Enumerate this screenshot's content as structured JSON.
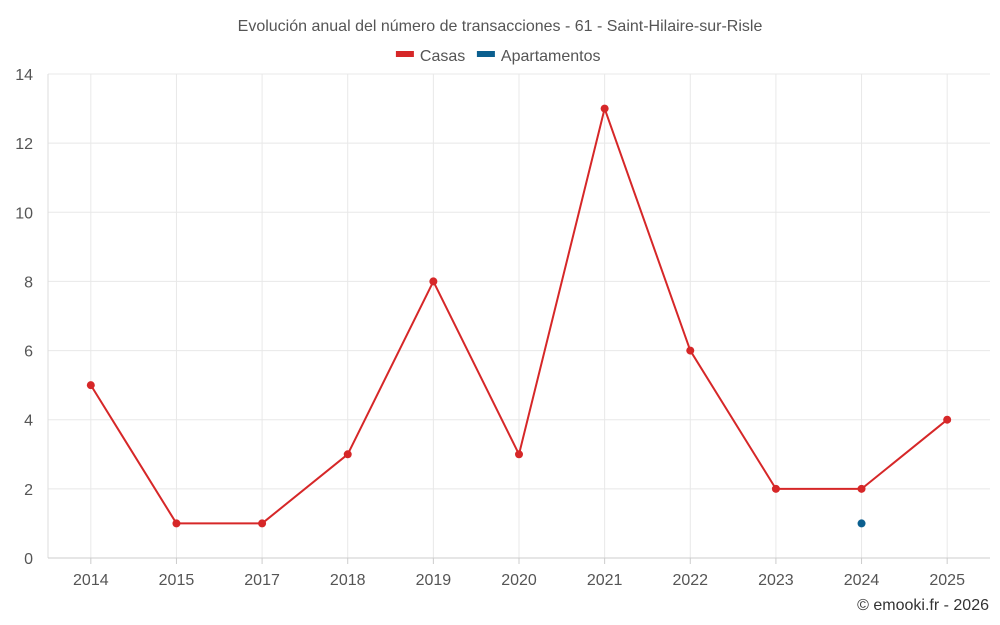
{
  "chart_data": {
    "type": "line",
    "title": "Evolución anual del número de transacciones - 61 - Saint-Hilaire-sur-Risle",
    "categories": [
      "2014",
      "2015",
      "2017",
      "2018",
      "2019",
      "2020",
      "2021",
      "2022",
      "2023",
      "2024",
      "2025"
    ],
    "series": [
      {
        "name": "Casas",
        "color": "#d62728",
        "values": [
          5,
          1,
          1,
          3,
          8,
          3,
          13,
          6,
          2,
          2,
          4
        ]
      },
      {
        "name": "Apartamentos",
        "color": "#0b5f8f",
        "values": [
          null,
          null,
          null,
          null,
          null,
          null,
          null,
          null,
          null,
          1,
          null
        ]
      }
    ],
    "ylim": [
      0,
      14
    ],
    "yticks": [
      0,
      2,
      4,
      6,
      8,
      10,
      12,
      14
    ],
    "grid": true,
    "legend": "top-center"
  },
  "credit": "© emooki.fr - 2026"
}
